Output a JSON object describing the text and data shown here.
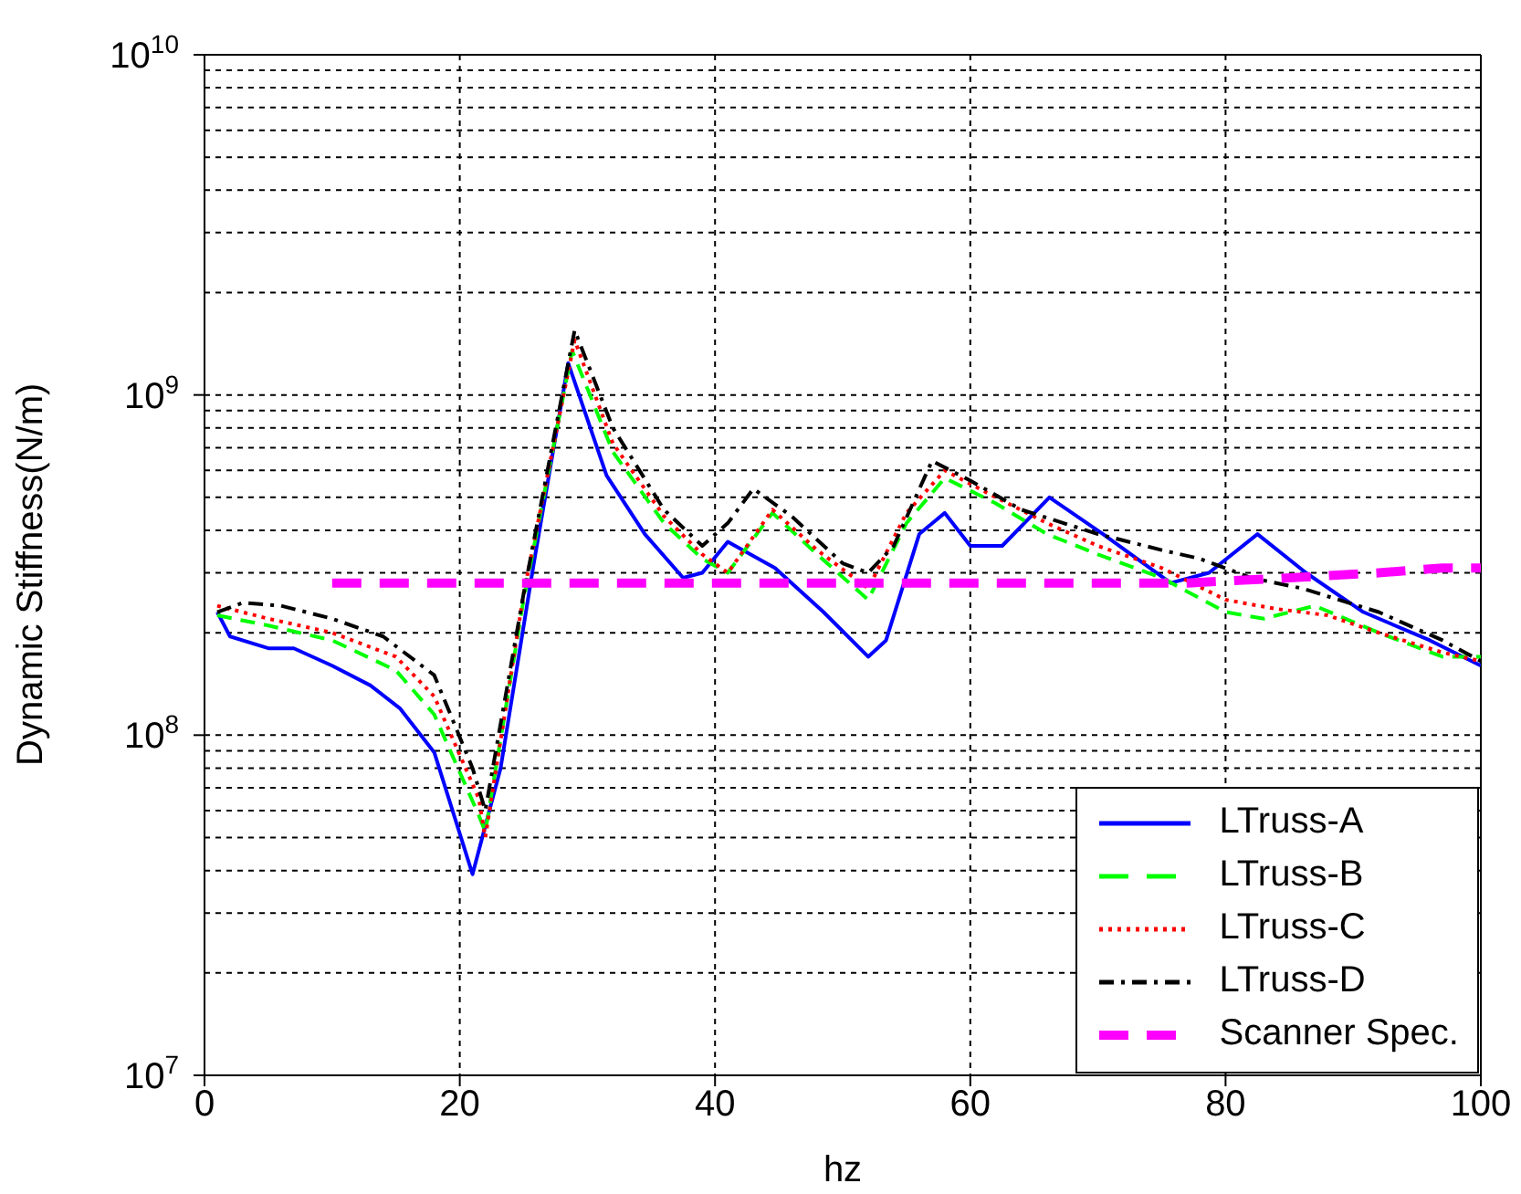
{
  "chart_data": {
    "type": "line",
    "xlabel": "hz",
    "ylabel": "Dynamic Stiffness(N/m)",
    "xlim": [
      0,
      100
    ],
    "xticks": [
      0,
      20,
      40,
      60,
      80,
      100
    ],
    "ylim": [
      10000000,
      10000000000
    ],
    "log": "y",
    "yticks": [
      {
        "value": 10000000,
        "label": "10$^{7}$"
      },
      {
        "value": 100000000,
        "label": "10$^{8}$"
      },
      {
        "value": 1000000000,
        "label": "10$^{9}$"
      },
      {
        "value": 10000000000,
        "label": "10$^{10}$"
      }
    ],
    "grid": true,
    "legend": "bottom right",
    "marker": "none",
    "series": [
      {
        "name": "LTruss-A",
        "color": "#0000ff",
        "line_style": "solid",
        "x": [
          1,
          2,
          5,
          7,
          10,
          13,
          15.3,
          18,
          21,
          23.2,
          25.8,
          28.5,
          31.5,
          34.5,
          37.5,
          39,
          41,
          44.7,
          48.5,
          52,
          53.4,
          56,
          58,
          60,
          62.5,
          66.2,
          70.4,
          75.7,
          78.7,
          82.5,
          86.3,
          90.8,
          96,
          100
        ],
        "values": [
          230000000,
          195000000,
          180000000,
          180000000,
          160000000,
          140000000,
          120000000,
          89000000,
          39000000,
          80000000,
          320000000,
          1240000000,
          580000000,
          390000000,
          290000000,
          300000000,
          370000000,
          310000000,
          230000000,
          170000000,
          190000000,
          390000000,
          450000000,
          360000000,
          360000000,
          500000000,
          390000000,
          280000000,
          300000000,
          390000000,
          300000000,
          230000000,
          190000000,
          160000000
        ]
      },
      {
        "name": "LTruss-B",
        "color": "#00ff00",
        "line_style": "dashed",
        "x": [
          1,
          5,
          10,
          15,
          18,
          21.5,
          22,
          25,
          28.8,
          32,
          36,
          39,
          41,
          44.5,
          48,
          52,
          55,
          58,
          62,
          66,
          70,
          75,
          80,
          83,
          87,
          92,
          97,
          100
        ],
        "values": [
          225000000,
          210000000,
          190000000,
          155000000,
          115000000,
          58000000,
          52000000,
          250000000,
          1350000000,
          680000000,
          420000000,
          330000000,
          300000000,
          450000000,
          340000000,
          250000000,
          420000000,
          570000000,
          480000000,
          390000000,
          340000000,
          290000000,
          230000000,
          220000000,
          240000000,
          200000000,
          170000000,
          170000000
        ]
      },
      {
        "name": "LTruss-C",
        "color": "#ff0000",
        "line_style": "dotted",
        "x": [
          1,
          5,
          10,
          15,
          18,
          21.5,
          22,
          25,
          29,
          32,
          36,
          39,
          41,
          44.5,
          48,
          52,
          55,
          58,
          62,
          66,
          70,
          75,
          80,
          84,
          88,
          92,
          97,
          100
        ],
        "values": [
          240000000,
          220000000,
          200000000,
          170000000,
          130000000,
          65000000,
          50000000,
          260000000,
          1450000000,
          720000000,
          440000000,
          340000000,
          300000000,
          460000000,
          350000000,
          270000000,
          450000000,
          600000000,
          500000000,
          420000000,
          360000000,
          310000000,
          250000000,
          235000000,
          225000000,
          200000000,
          175000000,
          165000000
        ]
      },
      {
        "name": "LTruss-D",
        "color": "#000000",
        "line_style": "dashdot",
        "x": [
          1,
          3,
          6,
          10,
          14,
          18,
          21,
          22,
          25,
          29,
          32,
          36,
          39,
          41,
          43,
          46,
          50,
          52,
          54,
          57,
          60,
          64,
          70,
          75,
          78,
          82,
          86,
          92,
          97,
          100
        ],
        "values": [
          230000000,
          245000000,
          240000000,
          220000000,
          195000000,
          150000000,
          80000000,
          60000000,
          260000000,
          1550000000,
          800000000,
          460000000,
          360000000,
          420000000,
          530000000,
          440000000,
          320000000,
          300000000,
          360000000,
          640000000,
          560000000,
          460000000,
          390000000,
          350000000,
          330000000,
          290000000,
          270000000,
          230000000,
          190000000,
          165000000
        ]
      },
      {
        "name": "Scanner Spec.",
        "color": "#ff00ff",
        "line_style": "dashed",
        "x": [
          10,
          77,
          85,
          92,
          97,
          100
        ],
        "values": [
          280000000,
          280000000,
          290000000,
          300000000,
          310000000,
          310000000
        ]
      }
    ]
  }
}
